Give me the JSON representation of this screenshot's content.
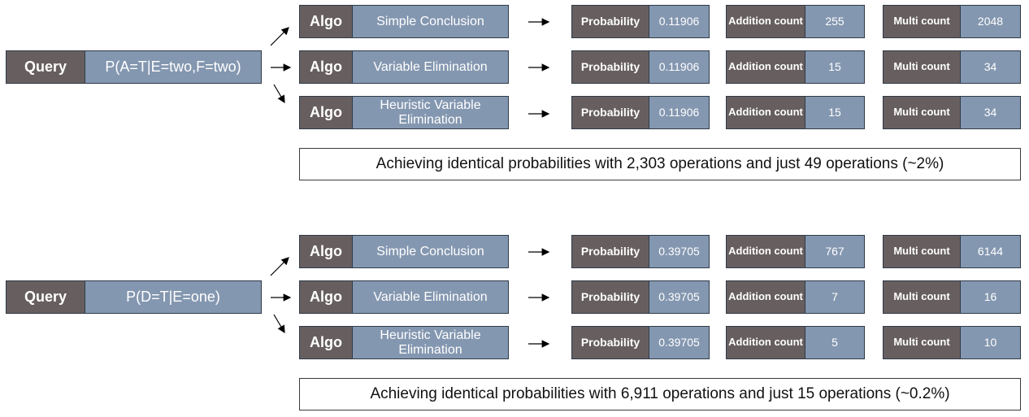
{
  "colors": {
    "dark_box": "#675f5f",
    "light_box": "#8497b0",
    "border": "#2f3a48"
  },
  "groups": [
    {
      "query_label": "Query",
      "query_value": "P(A=T|E=two,F=two)",
      "rows": [
        {
          "algo_label": "Algo",
          "algo_name": "Simple Conclusion",
          "prob_label": "Probability",
          "prob_value": "0.11906",
          "add_label": "Addition count",
          "add_value": "255",
          "mul_label": "Multi count",
          "mul_value": "2048"
        },
        {
          "algo_label": "Algo",
          "algo_name": "Variable Elimination",
          "prob_label": "Probability",
          "prob_value": "0.11906",
          "add_label": "Addition count",
          "add_value": "15",
          "mul_label": "Multi count",
          "mul_value": "34"
        },
        {
          "algo_label": "Algo",
          "algo_name": "Heuristic Variable Elimination",
          "prob_label": "Probability",
          "prob_value": "0.11906",
          "add_label": "Addition count",
          "add_value": "15",
          "mul_label": "Multi count",
          "mul_value": "34"
        }
      ],
      "summary": "Achieving identical probabilities with 2,303 operations and just 49 operations (~2%)"
    },
    {
      "query_label": "Query",
      "query_value": "P(D=T|E=one)",
      "rows": [
        {
          "algo_label": "Algo",
          "algo_name": "Simple Conclusion",
          "prob_label": "Probability",
          "prob_value": "0.39705",
          "add_label": "Addition count",
          "add_value": "767",
          "mul_label": "Multi count",
          "mul_value": "6144"
        },
        {
          "algo_label": "Algo",
          "algo_name": "Variable Elimination",
          "prob_label": "Probability",
          "prob_value": "0.39705",
          "add_label": "Addition count",
          "add_value": "7",
          "mul_label": "Multi count",
          "mul_value": "16"
        },
        {
          "algo_label": "Algo",
          "algo_name": "Heuristic Variable Elimination",
          "prob_label": "Probability",
          "prob_value": "0.39705",
          "add_label": "Addition count",
          "add_value": "5",
          "mul_label": "Multi count",
          "mul_value": "10"
        }
      ],
      "summary": "Achieving identical probabilities with 6,911 operations and just 15 operations (~0.2%)"
    }
  ]
}
